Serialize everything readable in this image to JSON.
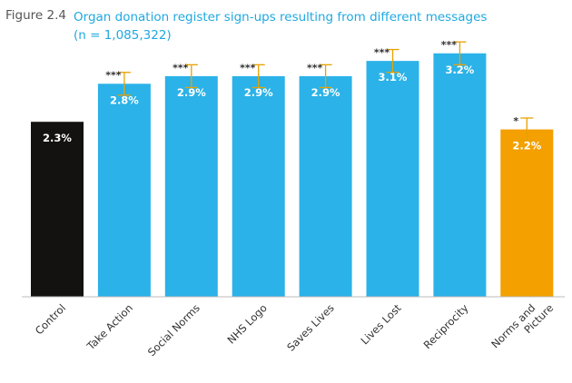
{
  "figure_label": "Figure 2.4",
  "title_line1": "Organ donation register sign-ups resulting from different messages",
  "title_line2": "(n = 1,085,322)",
  "colors": {
    "control": "#141210",
    "treatment": "#2bb2e8",
    "highlight": "#f3a000",
    "error": "#e8a200",
    "title": "#1fa9e1",
    "axis": "#555555"
  },
  "chart_data": {
    "type": "bar",
    "title": "Organ donation register sign-ups resulting from different messages",
    "subtitle": "(n = 1,085,322)",
    "xlabel": "",
    "ylabel": "",
    "ylim": [
      0,
      3.4
    ],
    "grid": false,
    "categories": [
      "Control",
      "Take Action",
      "Social Norms",
      "NHS Logo",
      "Saves Lives",
      "Lives Lost",
      "Reciprocity",
      "Norms and Picture"
    ],
    "values": [
      2.3,
      2.8,
      2.9,
      2.9,
      2.9,
      3.1,
      3.2,
      2.2
    ],
    "value_labels": [
      "2.3%",
      "2.8%",
      "2.9%",
      "2.9%",
      "2.9%",
      "3.1%",
      "3.2%",
      "2.2%"
    ],
    "error_low": [
      2.3,
      2.65,
      2.75,
      2.75,
      2.75,
      2.95,
      3.05,
      2.05
    ],
    "error_high": [
      2.3,
      2.95,
      3.05,
      3.05,
      3.05,
      3.25,
      3.35,
      2.35
    ],
    "significance": [
      "",
      "***",
      "***",
      "***",
      "***",
      "***",
      "***",
      "*"
    ],
    "bar_colors": [
      "#141210",
      "#2bb2e8",
      "#2bb2e8",
      "#2bb2e8",
      "#2bb2e8",
      "#2bb2e8",
      "#2bb2e8",
      "#f3a000"
    ]
  }
}
